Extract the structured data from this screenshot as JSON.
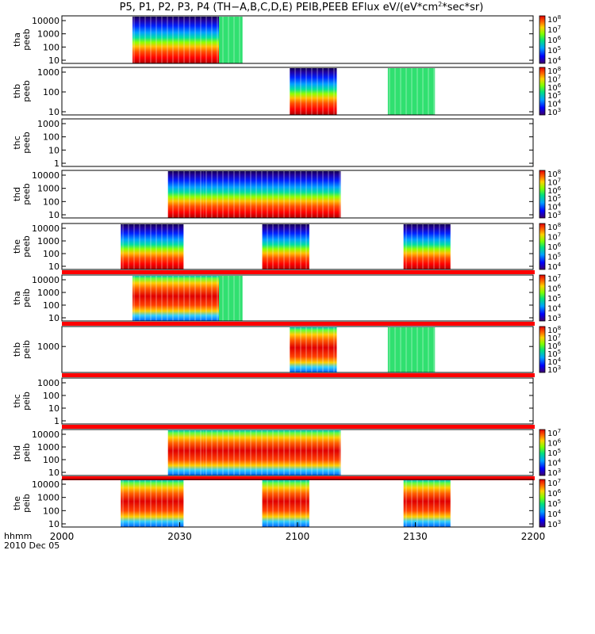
{
  "chart_data": {
    "type": "heatmap",
    "title": "P5, P1, P2, P3, P4 (TH−A,B,C,D,E) PEIB,PEEB EFlux eV/(eV*cm",
    "title_sup": "2",
    "title_tail": "*sec*sr)",
    "time_axis": {
      "ticks": [
        "2000",
        "2030",
        "2100",
        "2130",
        "2200"
      ],
      "range": [
        "2000",
        "2200"
      ],
      "label_line1": "hhmm",
      "label_line2": "2010 Dec 05"
    },
    "panels": [
      {
        "label_top": "tha",
        "label_bottom": "peeb",
        "yticks": [
          "10000",
          "1000",
          "100",
          "10"
        ],
        "cticks": [
          "8",
          "7",
          "6",
          "5",
          "4"
        ],
        "intervals": [
          [
            "2018",
            "2040"
          ],
          [
            "2040",
            "2046"
          ]
        ],
        "red_bar": false
      },
      {
        "label_top": "thb",
        "label_bottom": "peeb",
        "yticks": [
          "1000",
          "100",
          "10"
        ],
        "cticks": [
          "8",
          "7",
          "6",
          "5",
          "4",
          "3"
        ],
        "intervals": [
          [
            "2058",
            "2110"
          ],
          [
            "2123",
            "2135"
          ]
        ],
        "red_bar": false
      },
      {
        "label_top": "thc",
        "label_bottom": "peeb",
        "yticks": [
          "1000",
          "100",
          "10",
          "1"
        ],
        "cticks": [],
        "intervals": [],
        "red_bar": false
      },
      {
        "label_top": "thd",
        "label_bottom": "peeb",
        "yticks": [
          "10000",
          "1000",
          "100",
          "10"
        ],
        "cticks": [
          "8",
          "7",
          "6",
          "5",
          "4",
          "3"
        ],
        "intervals": [
          [
            "2027",
            "2036"
          ],
          [
            "2036",
            "2111"
          ]
        ],
        "red_bar": false
      },
      {
        "label_top": "the",
        "label_bottom": "peeb",
        "yticks": [
          "10000",
          "1000",
          "100",
          "10"
        ],
        "cticks": [
          "8",
          "7",
          "6",
          "5",
          "4"
        ],
        "intervals": [
          [
            "2015",
            "2031"
          ],
          [
            "2051",
            "2103"
          ],
          [
            "2127",
            "2139"
          ]
        ],
        "red_bar": true
      },
      {
        "label_top": "tha",
        "label_bottom": "peib",
        "yticks": [
          "10000",
          "1000",
          "100",
          "10"
        ],
        "cticks": [
          "7",
          "6",
          "5",
          "4",
          "3"
        ],
        "intervals": [
          [
            "2018",
            "2040"
          ],
          [
            "2040",
            "2046"
          ]
        ],
        "red_bar": true
      },
      {
        "label_top": "thb",
        "label_bottom": "peib",
        "yticks": [
          "1000"
        ],
        "cticks": [
          "8",
          "7",
          "6",
          "5",
          "4",
          "3"
        ],
        "intervals": [
          [
            "2058",
            "2110"
          ],
          [
            "2123",
            "2135"
          ]
        ],
        "red_bar": true
      },
      {
        "label_top": "thc",
        "label_bottom": "peib",
        "yticks": [
          "1000",
          "100",
          "10",
          "1"
        ],
        "cticks": [],
        "intervals": [],
        "red_bar": true
      },
      {
        "label_top": "thd",
        "label_bottom": "peib",
        "yticks": [
          "10000",
          "1000",
          "100",
          "10"
        ],
        "cticks": [
          "7",
          "6",
          "5",
          "4",
          "3"
        ],
        "intervals": [
          [
            "2027",
            "2036"
          ],
          [
            "2036",
            "2111"
          ]
        ],
        "red_bar": true
      },
      {
        "label_top": "the",
        "label_bottom": "peib",
        "yticks": [
          "10000",
          "1000",
          "100",
          "10"
        ],
        "cticks": [
          "7",
          "6",
          "5",
          "4",
          "3"
        ],
        "intervals": [
          [
            "2015",
            "2031"
          ],
          [
            "2051",
            "2103"
          ],
          [
            "2127",
            "2139"
          ]
        ],
        "red_bar": false
      }
    ]
  }
}
